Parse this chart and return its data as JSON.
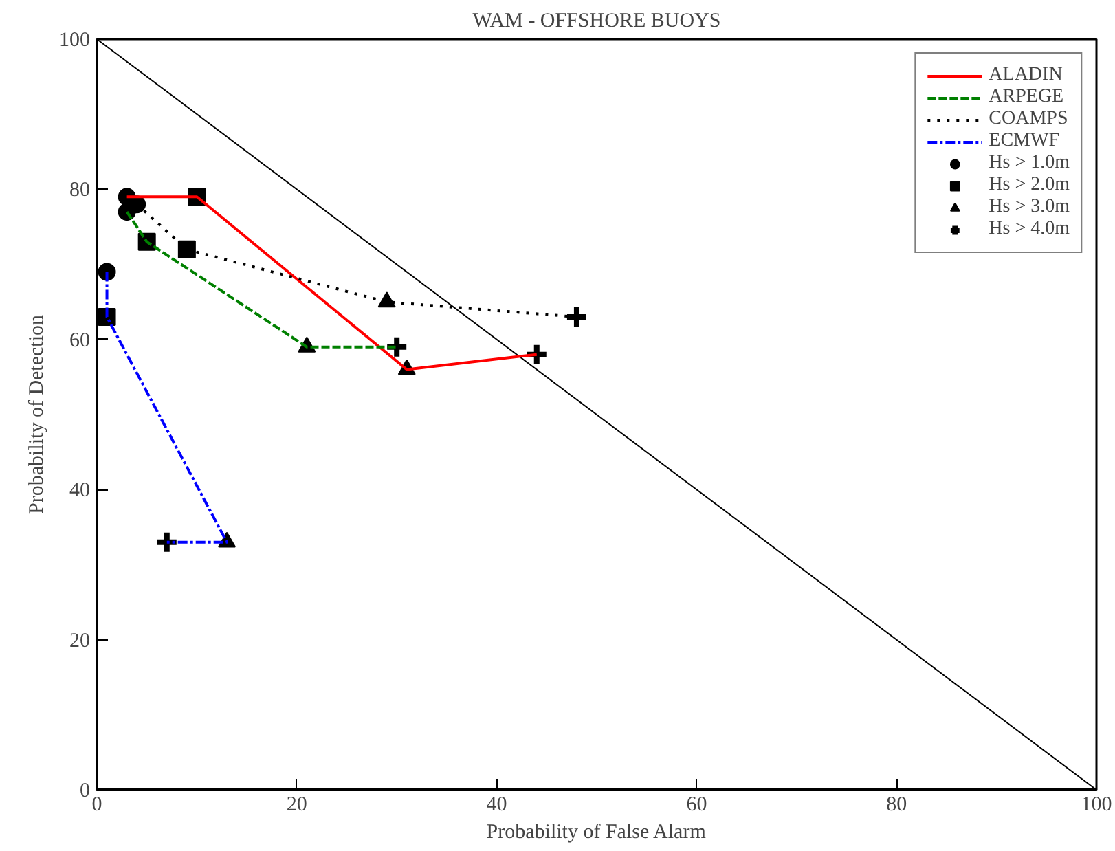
{
  "chart_data": {
    "type": "line",
    "title": "WAM - OFFSHORE BUOYS",
    "xlabel": "Probability of False Alarm",
    "ylabel": "Probability of Detection",
    "xlim": [
      0,
      100
    ],
    "ylim": [
      0,
      100
    ],
    "xticks": [
      0,
      20,
      40,
      60,
      80,
      100
    ],
    "yticks": [
      0,
      20,
      40,
      60,
      80,
      100
    ],
    "grid": false,
    "legend": "top right",
    "marker": "none",
    "series": [
      {
        "color": "#000000",
        "x": [
          0,
          100
        ],
        "values": [
          100,
          0
        ],
        "line_style": "solid"
      },
      {
        "name": "ALADIN",
        "color": "#ff0000",
        "x": [
          3,
          10,
          31,
          44
        ],
        "values": [
          79,
          79,
          56,
          58
        ],
        "line_style": "solid"
      },
      {
        "name": "ARPEGE",
        "color": "#008000",
        "x": [
          3,
          5,
          21,
          30
        ],
        "values": [
          77,
          73,
          59,
          59
        ],
        "line_style": "dashed"
      },
      {
        "name": "COAMPS",
        "color": "#000000",
        "x": [
          4,
          9,
          29,
          48
        ],
        "values": [
          78,
          72,
          65,
          63
        ],
        "line_style": "dotted"
      },
      {
        "name": "ECMWF",
        "color": "#0000ff",
        "x": [
          1,
          1,
          13,
          7
        ],
        "values": [
          69,
          63,
          33,
          33
        ],
        "line_style": "dashdot"
      },
      {
        "name": "Hs > 1.0m",
        "type": "scatter",
        "marker": "circle",
        "color": "#000000",
        "x": [
          3,
          3,
          4,
          1
        ],
        "values": [
          79,
          77,
          78,
          69
        ]
      },
      {
        "name": "Hs > 2.0m",
        "type": "scatter",
        "marker": "square",
        "color": "#000000",
        "x": [
          10,
          5,
          9,
          1
        ],
        "values": [
          79,
          73,
          72,
          63
        ]
      },
      {
        "name": "Hs > 3.0m",
        "type": "scatter",
        "marker": "triangle",
        "color": "#000000",
        "x": [
          31,
          21,
          29,
          13
        ],
        "values": [
          56,
          59,
          65,
          33
        ]
      },
      {
        "name": "Hs > 4.0m",
        "type": "scatter",
        "marker": "cross",
        "color": "#000000",
        "x": [
          44,
          30,
          48,
          7
        ],
        "values": [
          58,
          59,
          63,
          33
        ]
      }
    ]
  }
}
